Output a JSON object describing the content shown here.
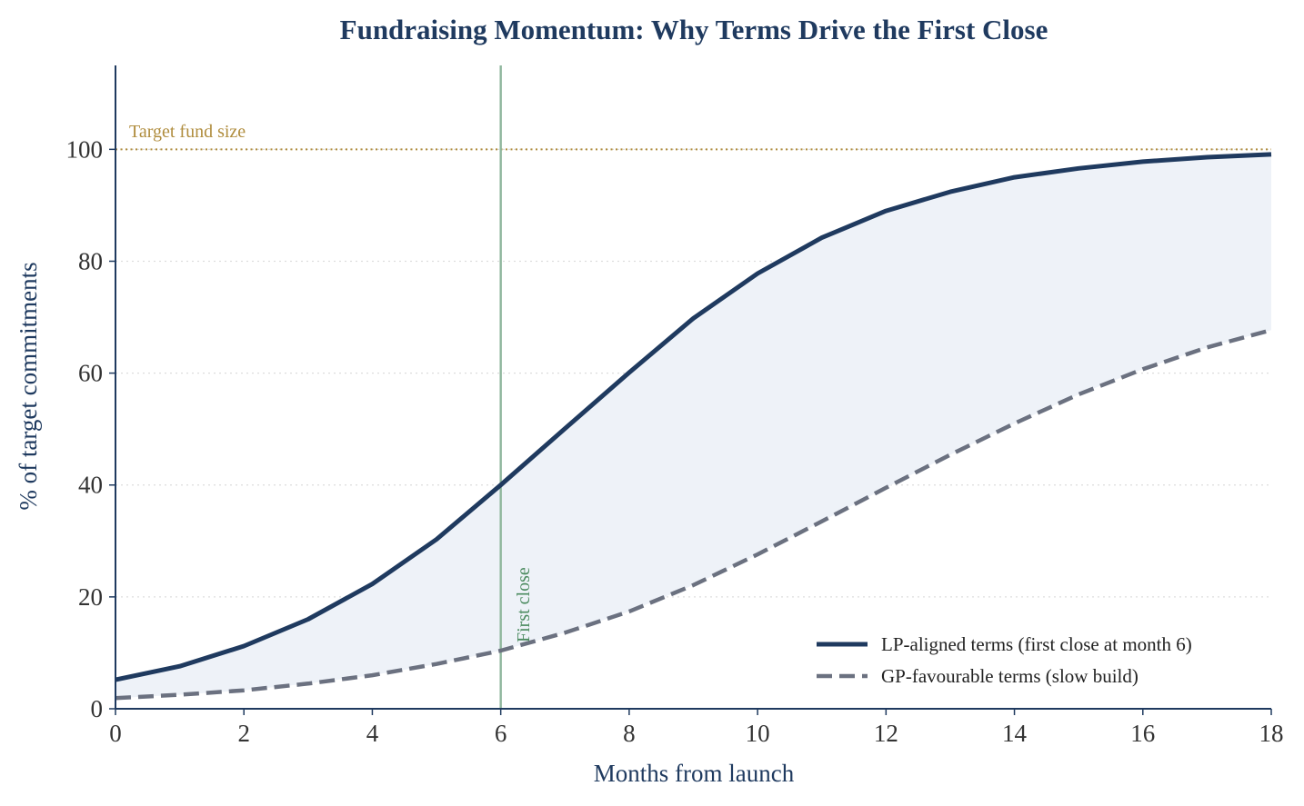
{
  "chart_data": {
    "type": "line",
    "title": "Fundraising Momentum: Why Terms Drive the First Close",
    "xlabel": "Months from launch",
    "ylabel": "% of target commitments",
    "xlim": [
      0,
      18
    ],
    "ylim": [
      0,
      115
    ],
    "xticks": [
      0,
      2,
      4,
      6,
      8,
      10,
      12,
      14,
      16,
      18
    ],
    "yticks": [
      0,
      20,
      40,
      60,
      80,
      100
    ],
    "grid": "horizontal dotted",
    "legend_position": "lower-right",
    "x": [
      0,
      1,
      2,
      3,
      4,
      5,
      6,
      7,
      8,
      9,
      10,
      11,
      12,
      13,
      14,
      15,
      16,
      17,
      18
    ],
    "series": [
      {
        "name": "LP-aligned terms (first close at month 6)",
        "style": "solid",
        "color": "#1f3a5f",
        "values": [
          5.2,
          7.6,
          11.2,
          16.0,
          22.3,
          30.3,
          40.0,
          50.1,
          60.1,
          69.8,
          77.8,
          84.2,
          89.0,
          92.4,
          95.0,
          96.6,
          97.8,
          98.6,
          99.1
        ]
      },
      {
        "name": "GP-favourable terms (slow build)",
        "style": "dashed",
        "color": "#6b7180",
        "values": [
          1.9,
          2.5,
          3.3,
          4.5,
          6.0,
          8.0,
          10.4,
          13.6,
          17.4,
          22.1,
          27.6,
          33.5,
          39.5,
          45.4,
          51.0,
          56.2,
          60.7,
          64.6,
          67.7
        ]
      }
    ],
    "shaded_region": {
      "between": "series",
      "color": "#eef2f8"
    },
    "reference_lines": [
      {
        "orientation": "horizontal",
        "value": 100,
        "style": "dotted",
        "color": "#b08d3e",
        "label": "Target fund size"
      },
      {
        "orientation": "vertical",
        "value": 6,
        "style": "solid",
        "color": "#8fb79d",
        "label": "First close",
        "label_color": "#4a8a5e"
      }
    ],
    "colors": {
      "axis": "#1f3a5f",
      "grid": "#dddddd",
      "tick_text": "#333333"
    }
  }
}
